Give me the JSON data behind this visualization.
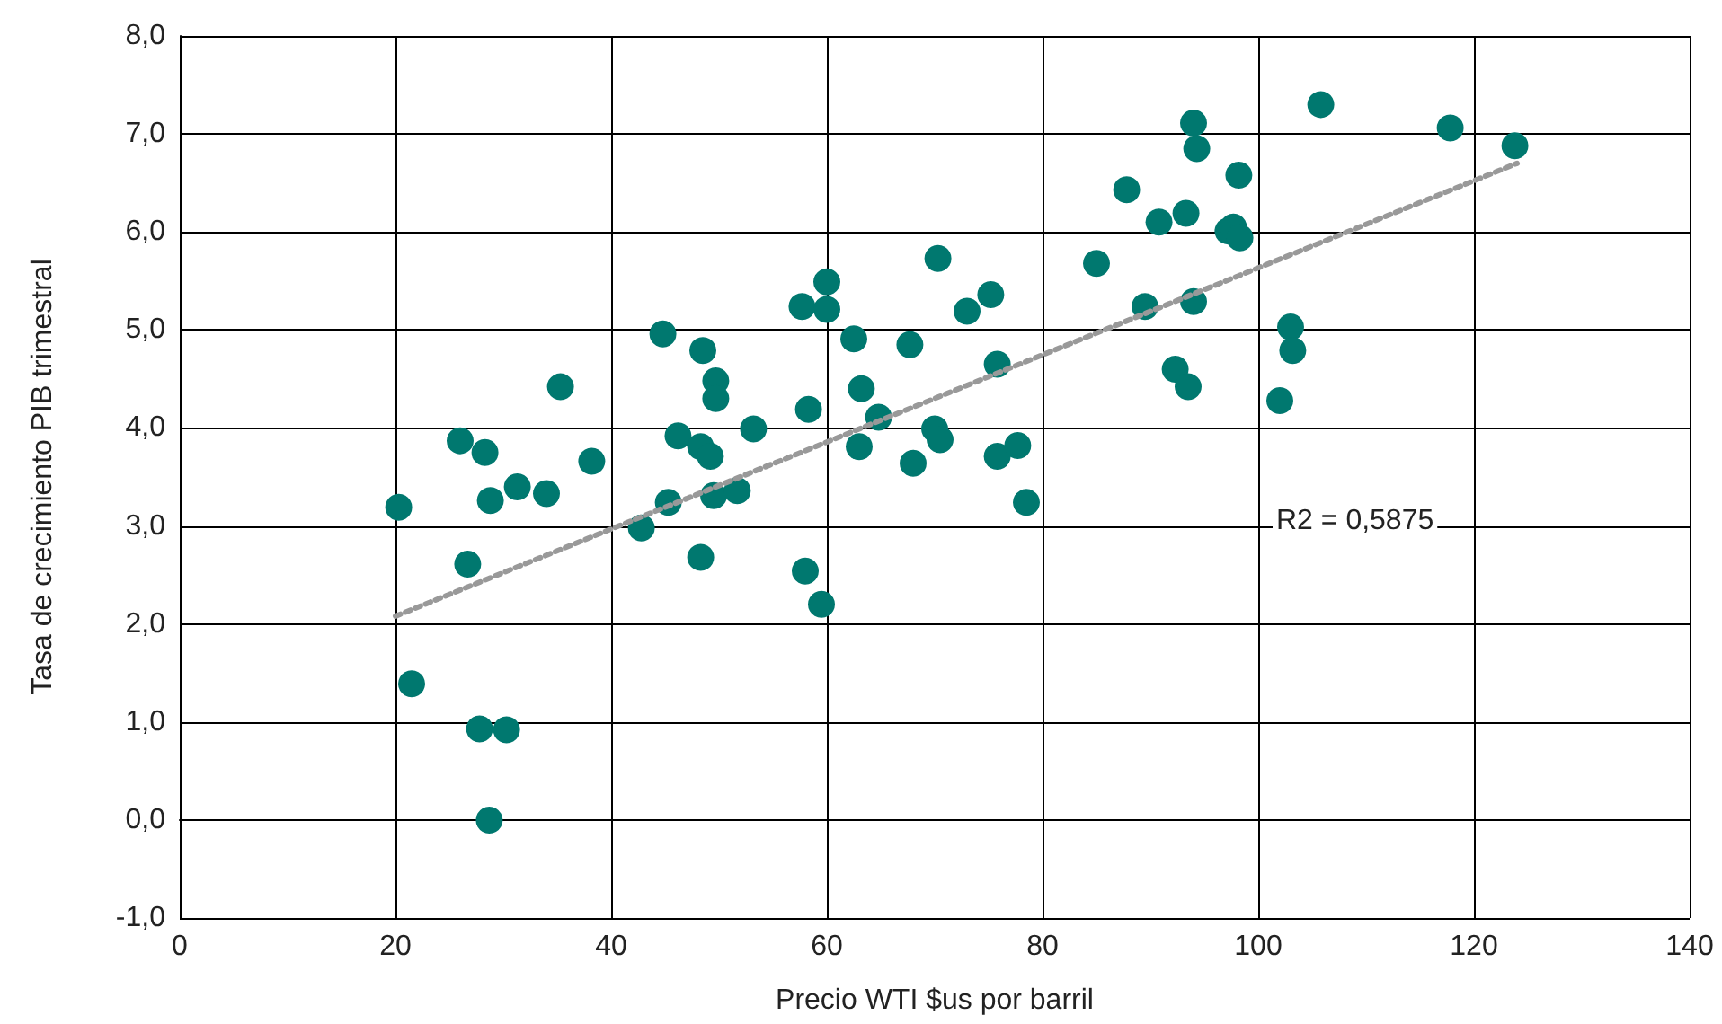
{
  "chart_data": {
    "type": "scatter",
    "xlabel": "Precio WTI $us por barril",
    "ylabel": "Tasa de crecimiento PIB trimestral",
    "xlim": [
      0,
      140
    ],
    "xticks": [
      0,
      20,
      40,
      60,
      80,
      100,
      120,
      140
    ],
    "ylim": [
      -1,
      8
    ],
    "yticks": [
      {
        "value": -1,
        "label": "-1,0"
      },
      {
        "value": 0,
        "label": "0,0"
      },
      {
        "value": 1,
        "label": "1,0"
      },
      {
        "value": 2,
        "label": "2,0"
      },
      {
        "value": 3,
        "label": "3,0"
      },
      {
        "value": 4,
        "label": "4,0"
      },
      {
        "value": 5,
        "label": "5,0"
      },
      {
        "value": 6,
        "label": "6,0"
      },
      {
        "value": 7,
        "label": "7,0"
      },
      {
        "value": 8,
        "label": "8,0"
      }
    ],
    "grid": true,
    "marker": "circle",
    "series": [
      {
        "color": "#00786f",
        "x": [
          20.3,
          21.5,
          26,
          26.7,
          27.8,
          28.3,
          28.8,
          28.7,
          30.3,
          31.3,
          34,
          35.3,
          38.2,
          42.8,
          44.8,
          45.3,
          46.2,
          48.3,
          48.5,
          48.3,
          49.2,
          49.7,
          49.7,
          49.5,
          51.7,
          53.2,
          57.7,
          58,
          58.3,
          59.5,
          60,
          60,
          62.5,
          63.2,
          63,
          64.8,
          67.7,
          68,
          70,
          70.3,
          70.5,
          73,
          75.2,
          75.8,
          75.8,
          77.7,
          78.5,
          85,
          87.8,
          89.5,
          90.8,
          92.3,
          93.3,
          93.5,
          94,
          94,
          94.3,
          97.2,
          97.7,
          98.2,
          98.3,
          102,
          103,
          103.2,
          105.8,
          117.8,
          123.8
        ],
        "values": [
          3.19,
          1.39,
          3.87,
          2.61,
          0.93,
          3.75,
          3.26,
          0.0,
          0.92,
          3.4,
          3.33,
          4.42,
          3.66,
          2.98,
          4.96,
          3.24,
          3.92,
          3.81,
          4.79,
          2.68,
          3.71,
          4.48,
          4.3,
          3.31,
          3.36,
          3.99,
          5.24,
          2.54,
          4.19,
          2.2,
          5.49,
          5.21,
          4.91,
          4.4,
          3.81,
          4.11,
          4.85,
          3.64,
          3.99,
          5.73,
          3.88,
          5.19,
          5.36,
          4.65,
          3.71,
          3.82,
          3.24,
          5.68,
          6.43,
          5.24,
          6.1,
          4.6,
          6.19,
          4.42,
          5.29,
          7.11,
          6.85,
          6.01,
          6.05,
          6.58,
          5.94,
          4.28,
          5.03,
          4.79,
          7.3,
          7.06,
          6.88
        ]
      },
      {
        "type": "line",
        "color": "#999999",
        "line_style": "dotted",
        "marker": "none",
        "x": [
          20,
          124
        ],
        "values": [
          2.08,
          6.7
        ]
      }
    ],
    "annotations": [
      "R2 = 0,5875"
    ]
  }
}
